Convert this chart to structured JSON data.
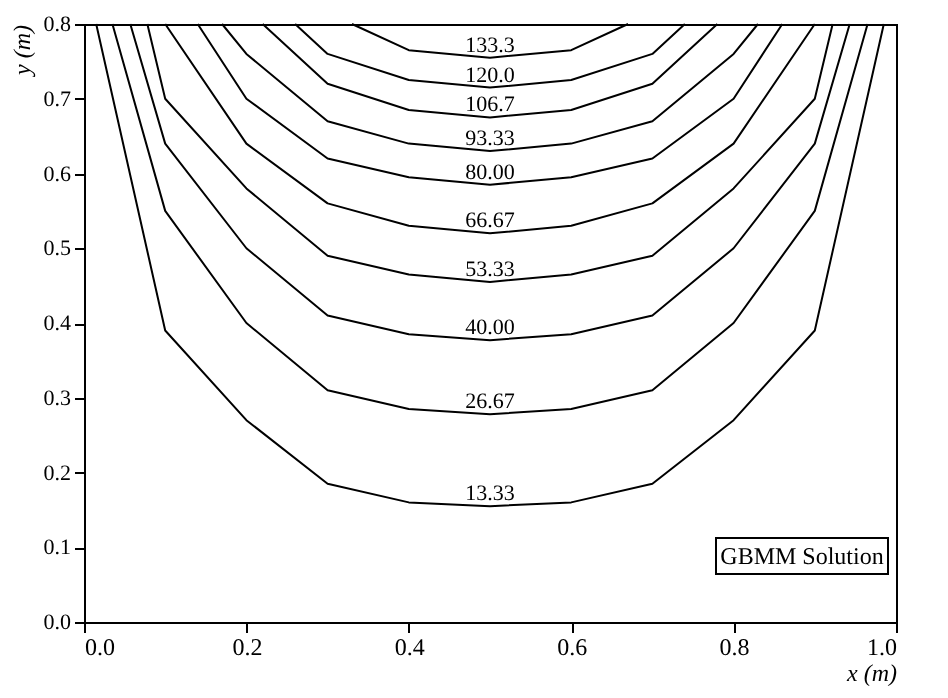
{
  "chart_data": {
    "type": "line",
    "xlabel": "x (m)",
    "ylabel": "y (m)",
    "xlim": [
      0,
      1
    ],
    "ylim": [
      0,
      0.8
    ],
    "xticks": [
      {
        "value": 0,
        "label": "0.0"
      },
      {
        "value": 0.2,
        "label": "0.2"
      },
      {
        "value": 0.4,
        "label": "0.4"
      },
      {
        "value": 0.6,
        "label": "0.6"
      },
      {
        "value": 0.8,
        "label": "0.8"
      },
      {
        "value": 1,
        "label": "1.0"
      }
    ],
    "yticks": [
      {
        "value": 0,
        "label": "0.0"
      },
      {
        "value": 0.1,
        "label": "0.1"
      },
      {
        "value": 0.2,
        "label": "0.2"
      },
      {
        "value": 0.3,
        "label": "0.3"
      },
      {
        "value": 0.4,
        "label": "0.4"
      },
      {
        "value": 0.5,
        "label": "0.5"
      },
      {
        "value": 0.6,
        "label": "0.6"
      },
      {
        "value": 0.7,
        "label": "0.7"
      },
      {
        "value": 0.8,
        "label": "0.8"
      }
    ],
    "grid": false,
    "legend": false,
    "marker": "none",
    "line_style": "solid",
    "annotations": [
      "GBMM Solution"
    ],
    "series": [
      {
        "name": "13.33",
        "color": "#000000",
        "x": [
          0.015,
          0.1,
          0.2,
          0.3,
          0.4,
          0.5,
          0.6,
          0.7,
          0.8,
          0.9,
          0.985
        ],
        "values": [
          0.8,
          0.39,
          0.27,
          0.185,
          0.16,
          0.155,
          0.16,
          0.185,
          0.27,
          0.39,
          0.8
        ]
      },
      {
        "name": "26.67",
        "color": "#000000",
        "x": [
          0.035,
          0.1,
          0.2,
          0.3,
          0.4,
          0.5,
          0.6,
          0.7,
          0.8,
          0.9,
          0.965
        ],
        "values": [
          0.8,
          0.55,
          0.4,
          0.31,
          0.285,
          0.278,
          0.285,
          0.31,
          0.4,
          0.55,
          0.8
        ]
      },
      {
        "name": "40.00",
        "color": "#000000",
        "x": [
          0.057,
          0.1,
          0.2,
          0.3,
          0.4,
          0.5,
          0.6,
          0.7,
          0.8,
          0.9,
          0.943
        ],
        "values": [
          0.8,
          0.64,
          0.5,
          0.41,
          0.385,
          0.377,
          0.385,
          0.41,
          0.5,
          0.64,
          0.8
        ]
      },
      {
        "name": "53.33",
        "color": "#000000",
        "x": [
          0.078,
          0.1,
          0.2,
          0.3,
          0.4,
          0.5,
          0.6,
          0.7,
          0.8,
          0.9,
          0.922
        ],
        "values": [
          0.8,
          0.7,
          0.58,
          0.49,
          0.465,
          0.455,
          0.465,
          0.49,
          0.58,
          0.7,
          0.8
        ]
      },
      {
        "name": "66.67",
        "color": "#000000",
        "x": [
          0.1,
          0.2,
          0.3,
          0.4,
          0.5,
          0.6,
          0.7,
          0.8,
          0.9
        ],
        "values": [
          0.8,
          0.64,
          0.56,
          0.53,
          0.52,
          0.53,
          0.56,
          0.64,
          0.8
        ]
      },
      {
        "name": "80.00",
        "color": "#000000",
        "x": [
          0.14,
          0.2,
          0.3,
          0.4,
          0.5,
          0.6,
          0.7,
          0.8,
          0.86
        ],
        "values": [
          0.8,
          0.7,
          0.62,
          0.595,
          0.585,
          0.595,
          0.62,
          0.7,
          0.8
        ]
      },
      {
        "name": "93.33",
        "color": "#000000",
        "x": [
          0.17,
          0.2,
          0.3,
          0.4,
          0.5,
          0.6,
          0.7,
          0.8,
          0.83
        ],
        "values": [
          0.8,
          0.76,
          0.67,
          0.64,
          0.63,
          0.64,
          0.67,
          0.76,
          0.8
        ]
      },
      {
        "name": "106.7",
        "color": "#000000",
        "x": [
          0.22,
          0.3,
          0.4,
          0.5,
          0.6,
          0.7,
          0.78
        ],
        "values": [
          0.8,
          0.72,
          0.685,
          0.675,
          0.685,
          0.72,
          0.8
        ]
      },
      {
        "name": "120.0",
        "color": "#000000",
        "x": [
          0.26,
          0.3,
          0.4,
          0.5,
          0.6,
          0.7,
          0.74
        ],
        "values": [
          0.8,
          0.76,
          0.725,
          0.715,
          0.725,
          0.76,
          0.8
        ]
      },
      {
        "name": "133.3",
        "color": "#000000",
        "x": [
          0.33,
          0.4,
          0.5,
          0.6,
          0.67
        ],
        "values": [
          0.8,
          0.765,
          0.755,
          0.765,
          0.8
        ]
      }
    ]
  }
}
